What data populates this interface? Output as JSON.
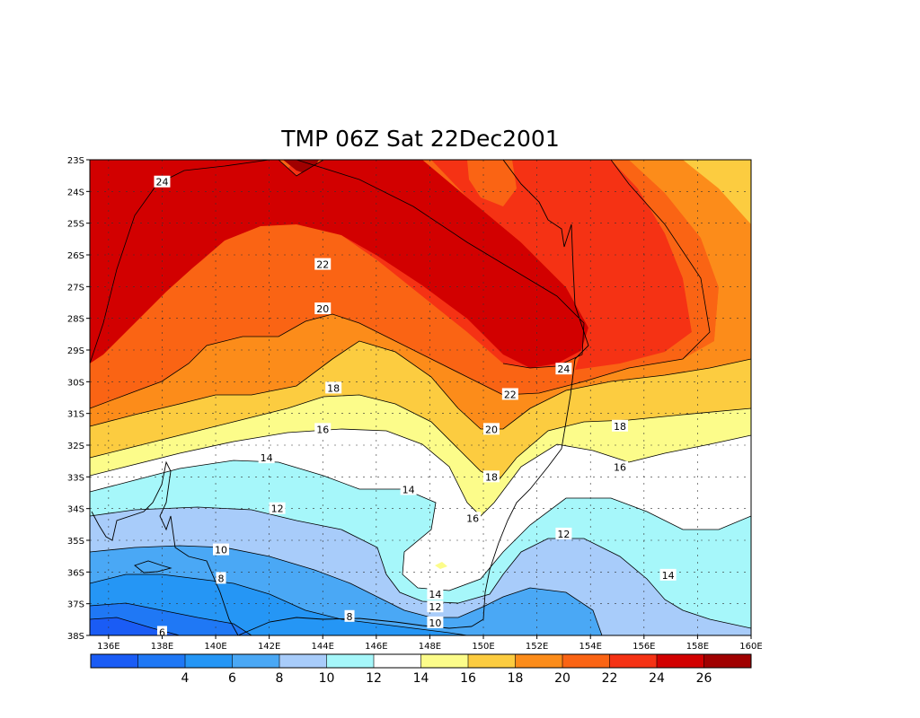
{
  "chart_data": {
    "type": "heatmap",
    "title": "TMP 06Z Sat 22Dec2001",
    "variable": "TMP",
    "units": "",
    "x_range": [
      135.3,
      160
    ],
    "y_range": [
      -38,
      -23
    ],
    "x_ticks": [
      "136E",
      "138E",
      "140E",
      "142E",
      "144E",
      "146E",
      "148E",
      "150E",
      "152E",
      "154E",
      "156E",
      "158E",
      "160E"
    ],
    "x_tick_values": [
      136,
      138,
      140,
      142,
      144,
      146,
      148,
      150,
      152,
      154,
      156,
      158,
      160
    ],
    "y_ticks": [
      "23S",
      "24S",
      "25S",
      "26S",
      "27S",
      "28S",
      "29S",
      "30S",
      "31S",
      "32S",
      "33S",
      "34S",
      "35S",
      "36S",
      "37S",
      "38S"
    ],
    "y_tick_values": [
      -23,
      -24,
      -25,
      -26,
      -27,
      -28,
      -29,
      -30,
      -31,
      -32,
      -33,
      -34,
      -35,
      -36,
      -37,
      -38
    ],
    "grid": true,
    "colorbar": {
      "position": "bottom",
      "levels": [
        2,
        4,
        6,
        8,
        10,
        12,
        14,
        16,
        18,
        20,
        22,
        24,
        26
      ],
      "labels": [
        "4",
        "6",
        "8",
        "10",
        "12",
        "14",
        "16",
        "18",
        "20",
        "22",
        "24",
        "26"
      ],
      "colors": [
        "#1a5cf5",
        "#1f78f5",
        "#2596f5",
        "#4aa8f5",
        "#a8ccfa",
        "#a6f7fa",
        "#ffffff",
        "#fcfc8a",
        "#fccc40",
        "#fc8c1a",
        "#fa6414",
        "#f53214",
        "#d20000",
        "#a00000"
      ]
    },
    "contour_labels": [
      {
        "value": "24",
        "lon": 138.0,
        "lat": -23.7
      },
      {
        "value": "24",
        "lon": 153.0,
        "lat": -29.6
      },
      {
        "value": "22",
        "lon": 144.0,
        "lat": -26.3
      },
      {
        "value": "22",
        "lon": 151.0,
        "lat": -30.4
      },
      {
        "value": "20",
        "lon": 144.0,
        "lat": -27.7
      },
      {
        "value": "20",
        "lon": 150.3,
        "lat": -31.5
      },
      {
        "value": "18",
        "lon": 144.4,
        "lat": -30.2
      },
      {
        "value": "18",
        "lon": 155.1,
        "lat": -31.4
      },
      {
        "value": "18",
        "lon": 150.3,
        "lat": -33.0
      },
      {
        "value": "16",
        "lon": 144.0,
        "lat": -31.5
      },
      {
        "value": "16",
        "lon": 155.1,
        "lat": -32.7
      },
      {
        "value": "16",
        "lon": 149.6,
        "lat": -34.3
      },
      {
        "value": "14",
        "lon": 141.9,
        "lat": -32.4
      },
      {
        "value": "14",
        "lon": 147.2,
        "lat": -33.4
      },
      {
        "value": "14",
        "lon": 148.2,
        "lat": -36.7
      },
      {
        "value": "14",
        "lon": 156.9,
        "lat": -36.1
      },
      {
        "value": "12",
        "lon": 142.3,
        "lat": -34.0
      },
      {
        "value": "12",
        "lon": 153.0,
        "lat": -34.8
      },
      {
        "value": "12",
        "lon": 148.2,
        "lat": -37.1
      },
      {
        "value": "10",
        "lon": 140.2,
        "lat": -35.3
      },
      {
        "value": "10",
        "lon": 148.2,
        "lat": -37.6
      },
      {
        "value": "8",
        "lon": 140.2,
        "lat": -36.2
      },
      {
        "value": "8",
        "lon": 145.0,
        "lat": -37.4
      },
      {
        "value": "6",
        "lon": 138.0,
        "lat": -37.9
      }
    ]
  }
}
